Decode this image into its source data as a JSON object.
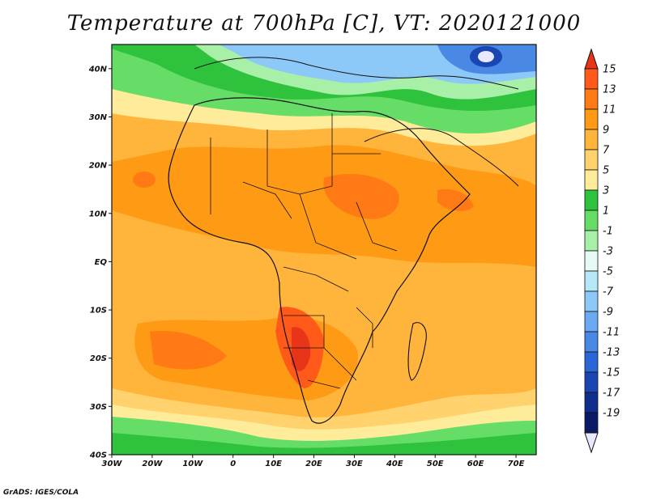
{
  "title": "Temperature at 700hPa [C], VT: 2020121000",
  "credit": "GrADS: IGES/COLA",
  "lon_ticks": [
    "30W",
    "20W",
    "10W",
    "0",
    "10E",
    "20E",
    "30E",
    "40E",
    "50E",
    "60E",
    "70E"
  ],
  "lat_ticks": [
    "40N",
    "30N",
    "20N",
    "10N",
    "EQ",
    "10S",
    "20S",
    "30S",
    "40S"
  ],
  "lon_range": [
    -30,
    75
  ],
  "lat_range": [
    -40,
    45
  ],
  "colorbar": {
    "labels": [
      "15",
      "13",
      "11",
      "9",
      "7",
      "5",
      "3",
      "1",
      "-1",
      "-3",
      "-5",
      "-7",
      "-9",
      "-11",
      "-13",
      "-15",
      "-17",
      "-19"
    ],
    "colors_top_to_bottom": [
      "#e8351a",
      "#ff5a1a",
      "#ff7a14",
      "#ff9a14",
      "#ffb43c",
      "#ffd26e",
      "#ffec9a",
      "#2fc23c",
      "#66dd66",
      "#a8f0a8",
      "#e6fbf6",
      "#b6e8f8",
      "#8cc8f8",
      "#6aaaf2",
      "#4a88e6",
      "#2a66d6",
      "#1a46b4",
      "#102e8c",
      "#0a1a66",
      "#e8e8ff"
    ]
  },
  "legend_scale": [
    "#0a1a66",
    "#102e8c",
    "#1a46b4",
    "#2a66d6",
    "#4a88e6",
    "#6aaaf2",
    "#8cc8f8",
    "#b6e8f8",
    "#e6fbf6",
    "#a8f0a8",
    "#66dd66",
    "#2fc23c",
    "#ffec9a",
    "#ffd26e",
    "#ffb43c",
    "#ff9a14",
    "#ff7a14",
    "#ff5a1a",
    "#e8351a"
  ]
}
